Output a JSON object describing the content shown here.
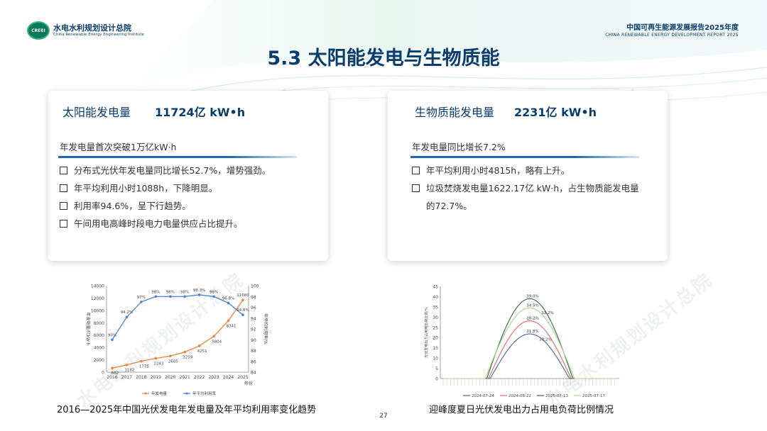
{
  "header": {
    "logo_badge": "CREEI",
    "logo_cn": "水电水利规划设计总院",
    "logo_en": "China Renewable Energy Engineering Institute",
    "report_cn": "中国可再生能源发展报告2025年度",
    "report_en": "CHINA RENEWABLE ENERGY DEVELOPMENT REPORT 2025"
  },
  "title": "5.3 太阳能发电与生物质能",
  "solar": {
    "label": "太阳能发电量",
    "value": "11724亿 kW•h",
    "subtitle": "年发电量首次突破1万亿kW·h",
    "bullets": [
      "分布式光伏年发电量同比增长52.7%，增势强劲。",
      "年平均利用小时1088h，下降明显。",
      "利用率94.6%，呈下行趋势。",
      "午间用电高峰时段电力电量供应占比提升。"
    ]
  },
  "biomass": {
    "label": "生物质能发电量",
    "value": "2231亿 kW•h",
    "subtitle": "年发电量同比增长7.2%",
    "bullets": [
      "年平均利用小时4815h，略有上升。",
      "垃圾焚烧发电量1622.17亿 kW·h，占生物质能发电量的72.7%。"
    ]
  },
  "watermark": "水电水利规划设计总院",
  "captions": {
    "left": "2016—2025年中国光伏发电年发电量及年平均利用率变化趋势",
    "right": "迎峰度夏日光伏发电出力占用电负荷比例情况"
  },
  "page_number": "27",
  "chart_data": [
    {
      "type": "line",
      "categories": [
        "2016",
        "2017",
        "2018",
        "2019",
        "2020",
        "2021",
        "2022",
        "2023",
        "2024",
        "2025"
      ],
      "xlabel": "年份",
      "ylabel": "年发电量/亿kW·h",
      "y2label": "年平均利用率/%",
      "ylim": [
        0,
        14000
      ],
      "y2lim": [
        84,
        100
      ],
      "yticks": [
        "0",
        "2000",
        "4000",
        "6000",
        "8000",
        "10000",
        "12000",
        "14000"
      ],
      "y2ticks": [
        "84",
        "86",
        "88",
        "90",
        "92",
        "94",
        "96",
        "98",
        "100"
      ],
      "series": [
        {
          "name": "年发电量",
          "axis": "left",
          "color": "#e8833a",
          "values": [
            662,
            1182,
            1775,
            2243,
            2605,
            3259,
            4251,
            5804,
            8341,
            11680
          ],
          "labels": [
            "662",
            "1182",
            "1775",
            "2243",
            "2605",
            "3259",
            "4251",
            "5804",
            "8341",
            "11680"
          ]
        },
        {
          "name": "年平均利用率",
          "axis": "right",
          "color": "#4a7fd4",
          "values": [
            90,
            94.2,
            97,
            98,
            98,
            98,
            98.3,
            98,
            96.8,
            94.6
          ],
          "labels": [
            "90%",
            "94.2%",
            "97%",
            "98%",
            "98%",
            "98%",
            "98.3%",
            "98%",
            "96.8%",
            "94.6%"
          ]
        }
      ],
      "legend": "bottom",
      "grid": false
    },
    {
      "type": "line",
      "ylabel": "光伏发电出力占用电负荷比例/%",
      "ylim": [
        0,
        45
      ],
      "yticks": [
        "0",
        "5",
        "10",
        "15",
        "20",
        "25",
        "30",
        "35",
        "40",
        "45"
      ],
      "slots": 96,
      "series": [
        {
          "name": "2024-07-24",
          "color": "#4a5fb5",
          "peak": 21.8,
          "peak_label": "21.8%"
        },
        {
          "name": "2024-08-22",
          "color": "#e06a6a",
          "peak": 28.2,
          "peak_label": "28.2%"
        },
        {
          "name": "2025-07-13",
          "color": "#2e6b3a",
          "peak": 39.0,
          "peak_label": "39.0%"
        },
        {
          "name": "2025-07-17",
          "color": "#a8d08a",
          "peak": 34.5,
          "peak_label": "34.5%"
        }
      ],
      "annotations": [
        "33.2%",
        "20.2%"
      ],
      "legend": "bottom",
      "grid": false
    }
  ]
}
